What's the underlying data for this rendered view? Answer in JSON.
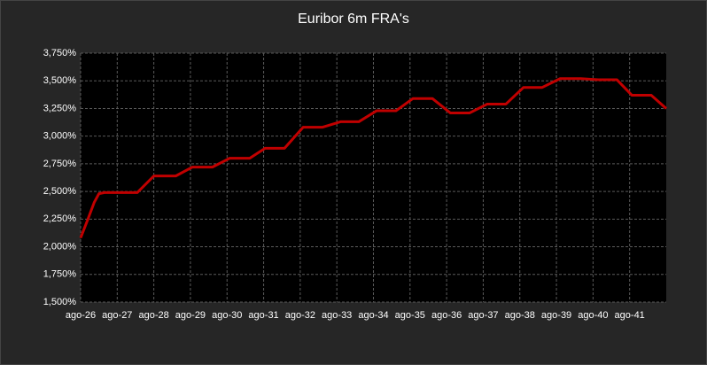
{
  "chart_data": {
    "type": "line",
    "title": "Euribor 6m FRA's",
    "x": [
      26,
      26.2,
      26.37,
      26.5,
      26.65,
      27.55,
      28.0,
      28.6,
      29.05,
      29.6,
      30.07,
      30.62,
      31.04,
      31.57,
      32.08,
      32.6,
      33.1,
      33.6,
      34.09,
      34.62,
      35.08,
      35.61,
      36.1,
      36.63,
      37.11,
      37.62,
      38.1,
      38.61,
      39.1,
      39.66,
      40.14,
      40.65,
      41.06,
      41.59,
      42.0
    ],
    "series": [
      {
        "name": "Euribor 6m FRA",
        "color": "#c00000",
        "values": [
          2.08,
          2.25,
          2.4,
          2.48,
          2.49,
          2.49,
          2.64,
          2.64,
          2.72,
          2.72,
          2.8,
          2.8,
          2.89,
          2.89,
          3.08,
          3.08,
          3.13,
          3.13,
          3.23,
          3.23,
          3.34,
          3.34,
          3.21,
          3.21,
          3.29,
          3.29,
          3.44,
          3.44,
          3.52,
          3.52,
          3.51,
          3.51,
          3.37,
          3.37,
          3.25
        ]
      }
    ],
    "xlim": [
      26,
      42
    ],
    "xticks": [
      {
        "value": 26,
        "label": "ago-26"
      },
      {
        "value": 27,
        "label": "ago-27"
      },
      {
        "value": 28,
        "label": "ago-28"
      },
      {
        "value": 29,
        "label": "ago-29"
      },
      {
        "value": 30,
        "label": "ago-30"
      },
      {
        "value": 31,
        "label": "ago-31"
      },
      {
        "value": 32,
        "label": "ago-32"
      },
      {
        "value": 33,
        "label": "ago-33"
      },
      {
        "value": 34,
        "label": "ago-34"
      },
      {
        "value": 35,
        "label": "ago-35"
      },
      {
        "value": 36,
        "label": "ago-36"
      },
      {
        "value": 37,
        "label": "ago-37"
      },
      {
        "value": 38,
        "label": "ago-38"
      },
      {
        "value": 39,
        "label": "ago-39"
      },
      {
        "value": 40,
        "label": "ago-40"
      },
      {
        "value": 41,
        "label": "ago-41"
      }
    ],
    "ylim": [
      1.5,
      3.75
    ],
    "yticks": [
      {
        "value": 1.5,
        "label": "1,500%"
      },
      {
        "value": 1.75,
        "label": "1,750%"
      },
      {
        "value": 2.0,
        "label": "2,000%"
      },
      {
        "value": 2.25,
        "label": "2,250%"
      },
      {
        "value": 2.5,
        "label": "2,500%"
      },
      {
        "value": 2.75,
        "label": "2,750%"
      },
      {
        "value": 3.0,
        "label": "3,000%"
      },
      {
        "value": 3.25,
        "label": "3,250%"
      },
      {
        "value": 3.5,
        "label": "3,500%"
      },
      {
        "value": 3.75,
        "label": "3,750%"
      }
    ],
    "grid": true
  }
}
